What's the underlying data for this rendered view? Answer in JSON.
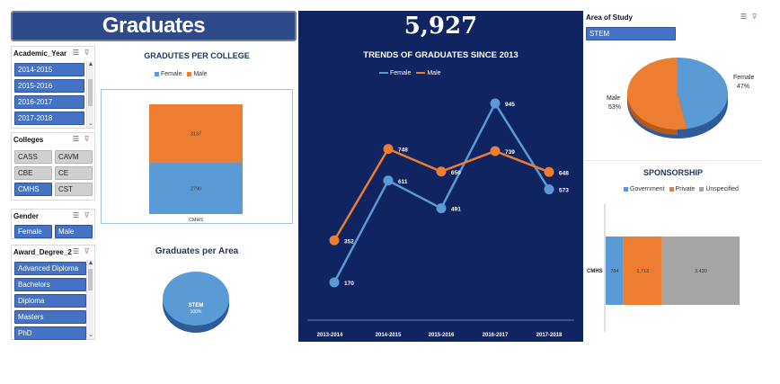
{
  "header": {
    "title": "Graduates",
    "total": "5,927"
  },
  "slicers": {
    "year": {
      "title": "Academic_Year",
      "items": [
        "2014-2015",
        "2015-2016",
        "2016-2017",
        "2017-2018"
      ]
    },
    "colleges": {
      "title": "Colleges",
      "items": [
        "CASS",
        "CAVM",
        "CBE",
        "CE",
        "CMHS",
        "CST"
      ],
      "selected": "CMHS"
    },
    "gender": {
      "title": "Gender",
      "items": [
        "Female",
        "Male"
      ]
    },
    "award": {
      "title": "Award_Degree_2",
      "items": [
        "Advanced Diploma",
        "Bachelors",
        "Diploma",
        "Masters",
        "PhD"
      ]
    },
    "area": {
      "title": "Area of Study",
      "items": [
        "STEM"
      ]
    }
  },
  "icons": {
    "multi_select": "multi-select-icon",
    "clear_filter": "clear-filter-icon"
  },
  "colors": {
    "female": "#5b9bd5",
    "male": "#ed7d31",
    "government": "#5b9bd5",
    "private": "#ed7d31",
    "unspecified": "#a5a5a5",
    "dark": "#0f2461",
    "slicer": "#4472c4"
  },
  "chart_data": [
    {
      "id": "per-college",
      "type": "bar",
      "title": "GRADUTES PER COLLEGE",
      "categories": [
        "CMHS"
      ],
      "series": [
        {
          "name": "Female",
          "values": [
            2790
          ]
        },
        {
          "name": "Male",
          "values": [
            3137
          ]
        }
      ],
      "stacked": true
    },
    {
      "id": "trends",
      "type": "line",
      "title": "TRENDS OF GRADUATES SINCE 2013",
      "categories": [
        "2013-2014",
        "2014-2015",
        "2015-2016",
        "2016-2017",
        "2017-2018"
      ],
      "series": [
        {
          "name": "Female",
          "values": [
            170,
            611,
            491,
            945,
            573
          ]
        },
        {
          "name": "Male",
          "values": [
            352,
            748,
            650,
            739,
            648
          ]
        }
      ],
      "legend": "top-left"
    },
    {
      "id": "per-area",
      "type": "pie",
      "title": "Graduates per Area",
      "labels": [
        "STEM"
      ],
      "values": [
        100
      ],
      "value_labels": [
        "100%"
      ]
    },
    {
      "id": "gender-pie",
      "type": "pie",
      "labels": [
        "Female",
        "Male"
      ],
      "values": [
        47,
        53
      ],
      "value_labels": [
        "47%",
        "53%"
      ]
    },
    {
      "id": "sponsorship",
      "type": "bar",
      "orientation": "horizontal",
      "stacked": true,
      "title": "SPONSORSHIP",
      "categories": [
        "CMHS"
      ],
      "series": [
        {
          "name": "Government",
          "values": [
            784
          ],
          "label": "784"
        },
        {
          "name": "Private",
          "values": [
            1713
          ],
          "label": "1,713"
        },
        {
          "name": "Unspecified",
          "values": [
            3430
          ],
          "label": "3,430"
        }
      ]
    }
  ]
}
